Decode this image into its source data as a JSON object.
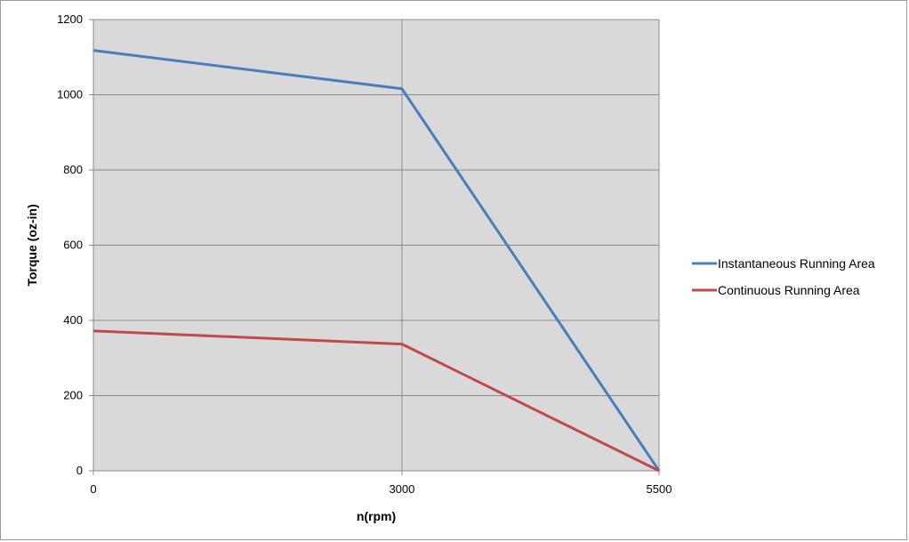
{
  "chart_data": {
    "type": "line",
    "title": "",
    "xlabel": "n(rpm)",
    "ylabel": "Torque (oz-in)",
    "x": [
      0,
      3000,
      5500
    ],
    "x_tick_labels": [
      "0",
      "3000",
      "5500"
    ],
    "y_ticks": [
      0,
      200,
      400,
      600,
      800,
      1000,
      1200
    ],
    "y_tick_labels": [
      "0",
      "200",
      "400",
      "600",
      "800",
      "1000",
      "1200"
    ],
    "ylim": [
      0,
      1200
    ],
    "grid": true,
    "legend_position": "right",
    "plot_background": "#d9d9d9",
    "series": [
      {
        "name": "Instantaneous Running Area",
        "color": "#4a7ebb",
        "values": [
          1118,
          1016,
          0
        ]
      },
      {
        "name": "Continuous Running Area",
        "color": "#be4b48",
        "values": [
          372,
          337,
          0
        ]
      }
    ]
  }
}
